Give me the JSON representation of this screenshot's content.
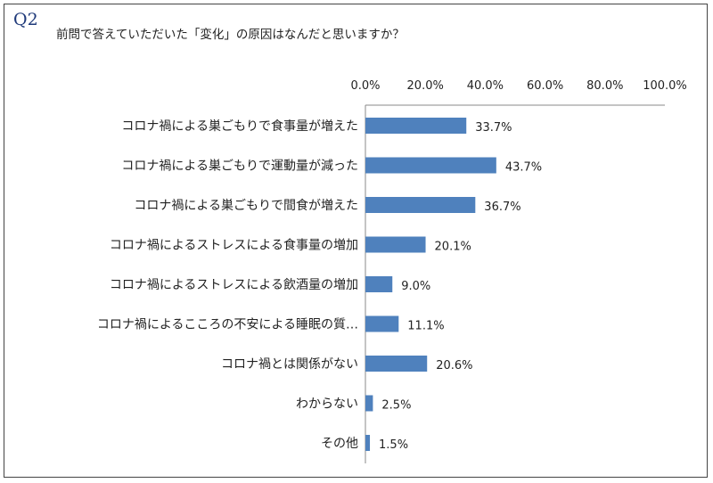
{
  "question": {
    "number": "Q2",
    "text": "前問で答えていただいた「変化」の原因はなんだと思いますか？"
  },
  "colors": {
    "bar": "#4f81bd",
    "axis": "#888888"
  },
  "chart_data": {
    "type": "bar",
    "orientation": "horizontal",
    "title": "",
    "xlabel": "",
    "ylabel": "",
    "xlim": [
      0,
      100
    ],
    "x_tick_labels": [
      "0.0%",
      "20.0%",
      "40.0%",
      "60.0%",
      "80.0%",
      "100.0%"
    ],
    "x_tick_position": "top",
    "categories": [
      "コロナ禍による巣ごもりで食事量が増えた",
      "コロナ禍による巣ごもりで運動量が減った",
      "コロナ禍による巣ごもりで間食が増えた",
      "コロナ禍によるストレスによる食事量の増加",
      "コロナ禍によるストレスによる飲酒量の増加",
      "コロナ禍によるこころの不安による睡眠の質…",
      "コロナ禍とは関係がない",
      "わからない",
      "その他"
    ],
    "values": [
      33.7,
      43.7,
      36.7,
      20.1,
      9.0,
      11.1,
      20.6,
      2.5,
      1.5
    ],
    "data_labels": [
      "33.7%",
      "43.7%",
      "36.7%",
      "20.1%",
      "9.0%",
      "11.1%",
      "20.6%",
      "2.5%",
      "1.5%"
    ]
  }
}
